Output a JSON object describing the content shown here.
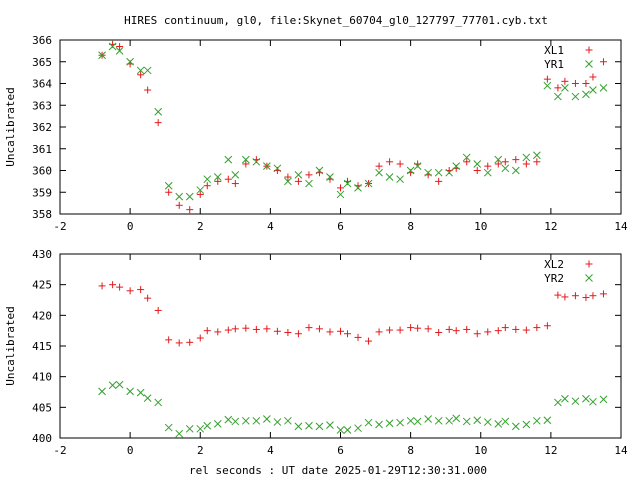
{
  "title": "HIRES continuum, gl0, file:Skynet_60704_gl0_127797_77701.cyb.txt",
  "xlabel": "rel seconds : UT date 2025-01-29T12:30:31.000",
  "chart_data": [
    {
      "type": "scatter",
      "ylabel": "Uncalibrated",
      "xlim": [
        -2,
        14
      ],
      "ylim": [
        358,
        366
      ],
      "xticks": [
        -2,
        0,
        2,
        4,
        6,
        8,
        10,
        12,
        14
      ],
      "yticks": [
        358,
        359,
        360,
        361,
        362,
        363,
        364,
        365,
        366
      ],
      "legend_position": "top-right",
      "series": [
        {
          "name": "XL1",
          "marker": "+",
          "color": "#e41a1c",
          "x": [
            -0.8,
            -0.5,
            -0.3,
            0.0,
            0.3,
            0.5,
            0.8,
            1.1,
            1.4,
            1.7,
            2.0,
            2.2,
            2.5,
            2.8,
            3.0,
            3.3,
            3.6,
            3.9,
            4.2,
            4.5,
            4.8,
            5.1,
            5.4,
            5.7,
            6.0,
            6.2,
            6.5,
            6.8,
            7.1,
            7.4,
            7.7,
            8.0,
            8.2,
            8.5,
            8.8,
            9.1,
            9.3,
            9.6,
            9.9,
            10.2,
            10.5,
            10.7,
            11.0,
            11.3,
            11.6,
            11.9,
            12.2,
            12.4,
            12.7,
            13.0,
            13.2,
            13.5
          ],
          "y": [
            365.3,
            365.8,
            365.7,
            364.9,
            364.4,
            363.7,
            362.2,
            359.0,
            358.4,
            358.2,
            358.9,
            359.3,
            359.5,
            359.6,
            359.4,
            360.3,
            360.5,
            360.2,
            360.0,
            359.7,
            359.5,
            359.8,
            359.9,
            359.6,
            359.2,
            359.5,
            359.3,
            359.4,
            360.2,
            360.4,
            360.3,
            359.9,
            360.3,
            359.8,
            359.5,
            360.0,
            360.1,
            360.4,
            360.0,
            360.2,
            360.3,
            360.4,
            360.5,
            360.3,
            360.4,
            364.2,
            363.8,
            364.1,
            364.0,
            364.0,
            364.3,
            365.0
          ]
        },
        {
          "name": "YR1",
          "marker": "x",
          "color": "#33a02c",
          "x": [
            -0.8,
            -0.5,
            -0.3,
            0.0,
            0.3,
            0.5,
            0.8,
            1.1,
            1.4,
            1.7,
            2.0,
            2.2,
            2.5,
            2.8,
            3.0,
            3.3,
            3.6,
            3.9,
            4.2,
            4.5,
            4.8,
            5.1,
            5.4,
            5.7,
            6.0,
            6.2,
            6.5,
            6.8,
            7.1,
            7.4,
            7.7,
            8.0,
            8.2,
            8.5,
            8.8,
            9.1,
            9.3,
            9.6,
            9.9,
            10.2,
            10.5,
            10.7,
            11.0,
            11.3,
            11.6,
            11.9,
            12.2,
            12.4,
            12.7,
            13.0,
            13.2,
            13.5
          ],
          "y": [
            365.3,
            365.7,
            365.5,
            365.0,
            364.6,
            364.6,
            362.7,
            359.3,
            358.8,
            358.8,
            359.1,
            359.6,
            359.7,
            360.5,
            359.8,
            360.5,
            360.4,
            360.2,
            360.1,
            359.5,
            359.8,
            359.4,
            360.0,
            359.7,
            358.9,
            359.4,
            359.2,
            359.4,
            359.9,
            359.7,
            359.6,
            360.0,
            360.2,
            359.9,
            359.9,
            359.9,
            360.2,
            360.6,
            360.3,
            359.9,
            360.5,
            360.1,
            360.0,
            360.6,
            360.7,
            363.9,
            363.4,
            363.8,
            363.4,
            363.5,
            363.7,
            363.8
          ]
        }
      ]
    },
    {
      "type": "scatter",
      "ylabel": "Uncalibrated",
      "xlim": [
        -2,
        14
      ],
      "ylim": [
        400,
        430
      ],
      "xticks": [
        -2,
        0,
        2,
        4,
        6,
        8,
        10,
        12,
        14
      ],
      "yticks": [
        400,
        405,
        410,
        415,
        420,
        425,
        430
      ],
      "legend_position": "top-right",
      "series": [
        {
          "name": "XL2",
          "marker": "+",
          "color": "#e41a1c",
          "x": [
            -0.8,
            -0.5,
            -0.3,
            0.0,
            0.3,
            0.5,
            0.8,
            1.1,
            1.4,
            1.7,
            2.0,
            2.2,
            2.5,
            2.8,
            3.0,
            3.3,
            3.6,
            3.9,
            4.2,
            4.5,
            4.8,
            5.1,
            5.4,
            5.7,
            6.0,
            6.2,
            6.5,
            6.8,
            7.1,
            7.4,
            7.7,
            8.0,
            8.2,
            8.5,
            8.8,
            9.1,
            9.3,
            9.6,
            9.9,
            10.2,
            10.5,
            10.7,
            11.0,
            11.3,
            11.6,
            11.9,
            12.2,
            12.4,
            12.7,
            13.0,
            13.2,
            13.5
          ],
          "y": [
            424.8,
            425.0,
            424.6,
            424.0,
            424.2,
            422.8,
            420.8,
            416.0,
            415.5,
            415.6,
            416.3,
            417.5,
            417.3,
            417.6,
            417.8,
            417.9,
            417.7,
            417.8,
            417.4,
            417.2,
            417.0,
            418.0,
            417.8,
            417.3,
            417.4,
            417.0,
            416.4,
            415.8,
            417.3,
            417.6,
            417.6,
            418.0,
            417.9,
            417.8,
            417.2,
            417.7,
            417.5,
            417.7,
            417.0,
            417.3,
            417.5,
            418.0,
            417.7,
            417.6,
            418.0,
            418.3,
            423.3,
            423.0,
            423.2,
            422.9,
            423.2,
            423.5
          ]
        },
        {
          "name": "YR2",
          "marker": "x",
          "color": "#33a02c",
          "x": [
            -0.8,
            -0.5,
            -0.3,
            0.0,
            0.3,
            0.5,
            0.8,
            1.1,
            1.4,
            1.7,
            2.0,
            2.2,
            2.5,
            2.8,
            3.0,
            3.3,
            3.6,
            3.9,
            4.2,
            4.5,
            4.8,
            5.1,
            5.4,
            5.7,
            6.0,
            6.2,
            6.5,
            6.8,
            7.1,
            7.4,
            7.7,
            8.0,
            8.2,
            8.5,
            8.8,
            9.1,
            9.3,
            9.6,
            9.9,
            10.2,
            10.5,
            10.7,
            11.0,
            11.3,
            11.6,
            11.9,
            12.2,
            12.4,
            12.7,
            13.0,
            13.2,
            13.5
          ],
          "y": [
            407.6,
            408.6,
            408.7,
            407.6,
            407.4,
            406.5,
            405.8,
            401.7,
            400.7,
            401.5,
            401.5,
            402.0,
            402.3,
            403.0,
            402.7,
            402.8,
            402.8,
            403.1,
            402.6,
            402.8,
            401.9,
            402.0,
            401.9,
            402.1,
            401.3,
            401.3,
            401.6,
            402.5,
            402.2,
            402.4,
            402.5,
            402.8,
            402.7,
            403.1,
            402.8,
            402.8,
            403.2,
            402.7,
            402.9,
            402.6,
            402.3,
            402.7,
            401.9,
            402.2,
            402.8,
            402.9,
            405.8,
            406.4,
            406.0,
            406.4,
            405.9,
            406.3
          ]
        }
      ]
    }
  ]
}
